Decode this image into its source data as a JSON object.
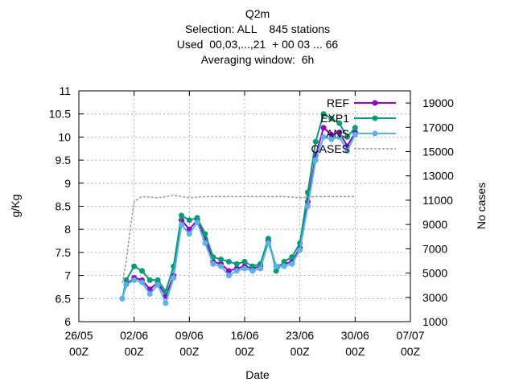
{
  "chart_data": {
    "type": "line",
    "title": "Q2m",
    "subtitle_lines": [
      "Selection: ALL    845 stations",
      "Used  00,03,...,21  + 00 03 ... 66",
      "Averaging window:  6h"
    ],
    "xlabel": "Date",
    "ylabel": "g/Kg",
    "y2label": "No cases",
    "x_ticks": [
      {
        "day": -4,
        "line1": "26/05",
        "line2": "00Z"
      },
      {
        "day": 3,
        "line1": "02/06",
        "line2": "00Z"
      },
      {
        "day": 10,
        "line1": "09/06",
        "line2": "00Z"
      },
      {
        "day": 17,
        "line1": "16/06",
        "line2": "00Z"
      },
      {
        "day": 24,
        "line1": "23/06",
        "line2": "00Z"
      },
      {
        "day": 31,
        "line1": "30/06",
        "line2": "00Z"
      },
      {
        "day": 38,
        "line1": "07/07",
        "line2": "00Z"
      }
    ],
    "xlim": [
      -4,
      38
    ],
    "ylim": [
      6,
      11
    ],
    "y_ticks": [
      "6",
      "6.5",
      "7",
      "7.5",
      "8",
      "8.5",
      "9",
      "9.5",
      "10",
      "10.5",
      "11"
    ],
    "y2lim": [
      1000,
      20000
    ],
    "y2_ticks": [
      "1000",
      "3000",
      "5000",
      "7000",
      "9000",
      "11000",
      "13000",
      "15000",
      "17000",
      "19000"
    ],
    "grid": true,
    "legend_position": "top-right",
    "series": [
      {
        "name": "REF",
        "color": "#9400d3",
        "axis": "left",
        "points": [
          [
            1.5,
            6.5
          ],
          [
            2,
            6.8
          ],
          [
            3,
            6.95
          ],
          [
            4,
            6.9
          ],
          [
            5,
            6.7
          ],
          [
            6,
            6.85
          ],
          [
            7,
            6.55
          ],
          [
            8,
            7.0
          ],
          [
            9,
            8.2
          ],
          [
            10,
            8.0
          ],
          [
            11,
            8.2
          ],
          [
            12,
            7.8
          ],
          [
            13,
            7.3
          ],
          [
            14,
            7.25
          ],
          [
            15,
            7.1
          ],
          [
            16,
            7.15
          ],
          [
            17,
            7.2
          ],
          [
            18,
            7.15
          ],
          [
            19,
            7.2
          ],
          [
            20,
            7.75
          ],
          [
            21,
            7.2
          ],
          [
            22,
            7.25
          ],
          [
            23,
            7.3
          ],
          [
            24,
            7.6
          ],
          [
            25,
            8.6
          ],
          [
            26,
            9.6
          ],
          [
            27,
            10.2
          ],
          [
            28,
            10.05
          ],
          [
            29,
            10.1
          ],
          [
            30,
            9.8
          ],
          [
            31,
            10.1
          ]
        ]
      },
      {
        "name": "EXP1",
        "color": "#009e73",
        "axis": "left",
        "points": [
          [
            1.5,
            6.5
          ],
          [
            2,
            6.9
          ],
          [
            3,
            7.2
          ],
          [
            4,
            7.1
          ],
          [
            5,
            6.9
          ],
          [
            6,
            6.9
          ],
          [
            7,
            6.65
          ],
          [
            8,
            7.2
          ],
          [
            9,
            8.3
          ],
          [
            10,
            8.2
          ],
          [
            11,
            8.25
          ],
          [
            12,
            7.9
          ],
          [
            13,
            7.4
          ],
          [
            14,
            7.35
          ],
          [
            15,
            7.3
          ],
          [
            16,
            7.25
          ],
          [
            17,
            7.3
          ],
          [
            18,
            7.2
          ],
          [
            19,
            7.25
          ],
          [
            20,
            7.8
          ],
          [
            21,
            7.1
          ],
          [
            22,
            7.3
          ],
          [
            23,
            7.4
          ],
          [
            24,
            7.7
          ],
          [
            25,
            8.8
          ],
          [
            26,
            9.9
          ],
          [
            27,
            10.5
          ],
          [
            28,
            10.4
          ],
          [
            29,
            10.3
          ],
          [
            30,
            10.0
          ],
          [
            31,
            10.2
          ]
        ]
      },
      {
        "name": "ANS",
        "color": "#56b4e9",
        "axis": "left",
        "points": [
          [
            1.5,
            6.5
          ],
          [
            2,
            6.8
          ],
          [
            3,
            6.9
          ],
          [
            4,
            6.85
          ],
          [
            5,
            6.6
          ],
          [
            6,
            6.8
          ],
          [
            7,
            6.4
          ],
          [
            8,
            6.95
          ],
          [
            9,
            8.1
          ],
          [
            10,
            7.9
          ],
          [
            11,
            8.15
          ],
          [
            12,
            7.7
          ],
          [
            13,
            7.25
          ],
          [
            14,
            7.2
          ],
          [
            15,
            7.0
          ],
          [
            16,
            7.1
          ],
          [
            17,
            7.15
          ],
          [
            18,
            7.1
          ],
          [
            19,
            7.15
          ],
          [
            20,
            7.7
          ],
          [
            21,
            7.2
          ],
          [
            22,
            7.2
          ],
          [
            23,
            7.25
          ],
          [
            24,
            7.55
          ],
          [
            25,
            8.5
          ],
          [
            26,
            9.5
          ],
          [
            27,
            10.0
          ],
          [
            28,
            9.95
          ],
          [
            29,
            10.0
          ],
          [
            30,
            9.7
          ],
          [
            31,
            10.05
          ]
        ]
      },
      {
        "name": "CASES",
        "color": "#999999",
        "axis": "right",
        "points": [
          [
            1.5,
            4200
          ],
          [
            2,
            6000
          ],
          [
            2.5,
            8600
          ],
          [
            3,
            10900
          ],
          [
            4,
            11300
          ],
          [
            6,
            11200
          ],
          [
            8,
            11400
          ],
          [
            10,
            11200
          ],
          [
            12,
            11300
          ],
          [
            14,
            11300
          ],
          [
            16,
            11300
          ],
          [
            18,
            11300
          ],
          [
            20,
            11300
          ],
          [
            22,
            11300
          ],
          [
            24,
            11200
          ],
          [
            26,
            11300
          ],
          [
            28,
            11300
          ],
          [
            30,
            11300
          ],
          [
            31,
            11300
          ]
        ]
      }
    ]
  }
}
